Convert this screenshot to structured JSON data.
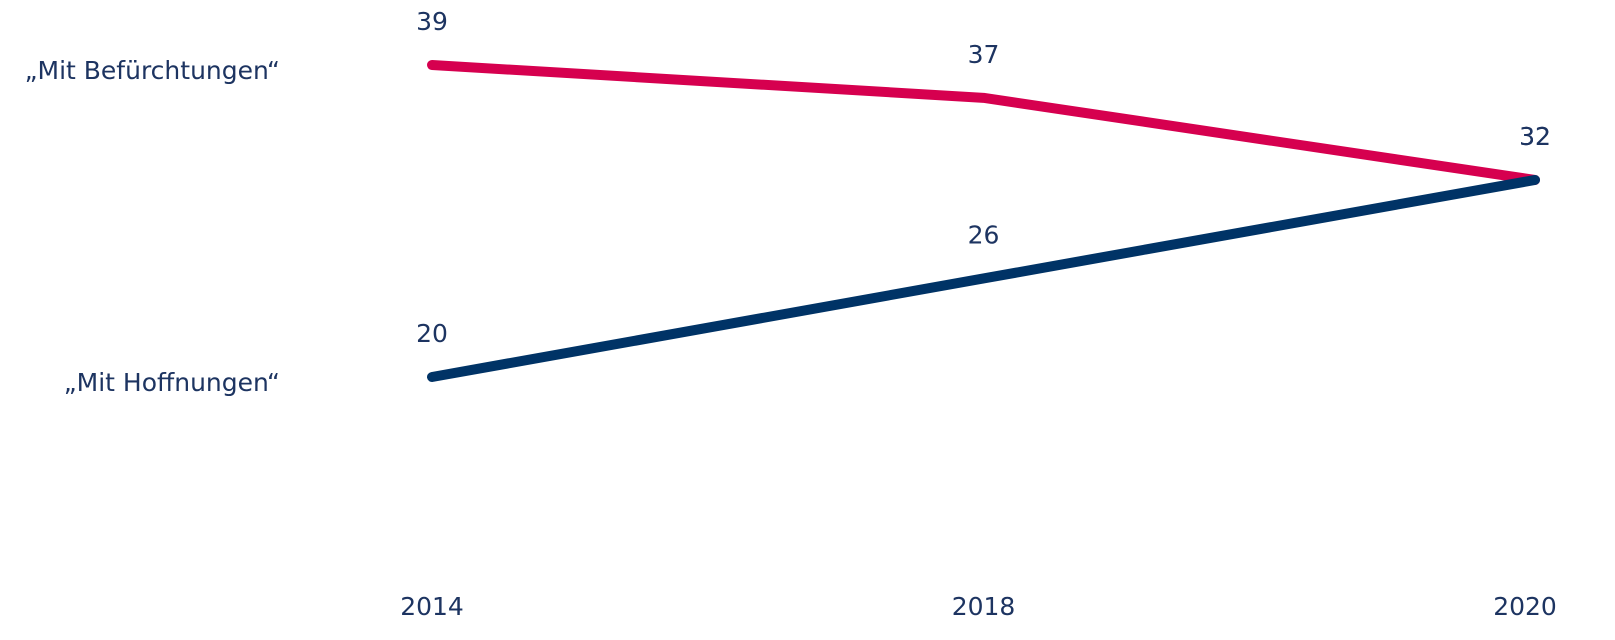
{
  "chart_data": {
    "type": "line",
    "categories": [
      "2014",
      "2018",
      "2020"
    ],
    "series": [
      {
        "name": "„Mit Befürchtungen“",
        "color": "#d6004f",
        "values": [
          39,
          37,
          32
        ]
      },
      {
        "name": "„Mit Hoffnungen“",
        "color": "#003366",
        "values": [
          20,
          26,
          32
        ]
      }
    ]
  }
}
